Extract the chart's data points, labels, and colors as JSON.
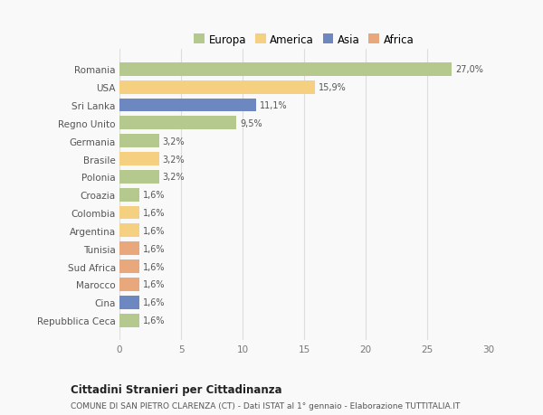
{
  "countries": [
    "Romania",
    "USA",
    "Sri Lanka",
    "Regno Unito",
    "Germania",
    "Brasile",
    "Polonia",
    "Croazia",
    "Colombia",
    "Argentina",
    "Tunisia",
    "Sud Africa",
    "Marocco",
    "Cina",
    "Repubblica Ceca"
  ],
  "values": [
    27.0,
    15.9,
    11.1,
    9.5,
    3.2,
    3.2,
    3.2,
    1.6,
    1.6,
    1.6,
    1.6,
    1.6,
    1.6,
    1.6,
    1.6
  ],
  "labels": [
    "27,0%",
    "15,9%",
    "11,1%",
    "9,5%",
    "3,2%",
    "3,2%",
    "3,2%",
    "1,6%",
    "1,6%",
    "1,6%",
    "1,6%",
    "1,6%",
    "1,6%",
    "1,6%",
    "1,6%"
  ],
  "colors": [
    "#b5c98e",
    "#f5d080",
    "#6d87c0",
    "#b5c98e",
    "#b5c98e",
    "#f5d080",
    "#b5c98e",
    "#b5c98e",
    "#f5d080",
    "#f5d080",
    "#e8a87c",
    "#e8a87c",
    "#e8a87c",
    "#6d87c0",
    "#b5c98e"
  ],
  "legend_labels": [
    "Europa",
    "America",
    "Asia",
    "Africa"
  ],
  "legend_colors": [
    "#b5c98e",
    "#f5d080",
    "#6d87c0",
    "#e8a87c"
  ],
  "title": "Cittadini Stranieri per Cittadinanza",
  "subtitle": "COMUNE DI SAN PIETRO CLARENZA (CT) - Dati ISTAT al 1° gennaio - Elaborazione TUTTITALIA.IT",
  "xlim": [
    0,
    30
  ],
  "xticks": [
    0,
    5,
    10,
    15,
    20,
    25,
    30
  ],
  "background_color": "#f9f9f9",
  "grid_color": "#dddddd",
  "bar_height": 0.75
}
